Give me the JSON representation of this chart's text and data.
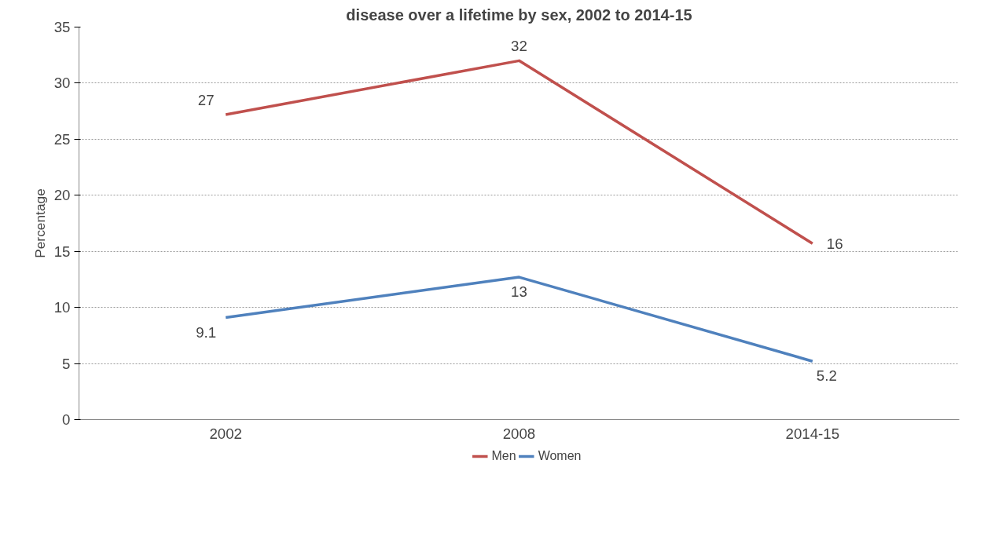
{
  "chart_data": {
    "type": "line",
    "title": "disease over a lifetime by sex, 2002 to 2014-15",
    "ylabel": "Percentage",
    "categories": [
      "2002",
      "2008",
      "2014-15"
    ],
    "series": [
      {
        "name": "Men",
        "color": "#c0504d",
        "values": [
          27.2,
          32.0,
          15.7
        ],
        "value_labels": [
          "27",
          "32",
          "16"
        ]
      },
      {
        "name": "Women",
        "color": "#4f81bd",
        "values": [
          9.1,
          12.7,
          5.2
        ],
        "value_labels": [
          "9.1",
          "13",
          "5.2"
        ]
      }
    ],
    "ylim": [
      0,
      35
    ],
    "yticks": [
      0,
      5,
      10,
      15,
      20,
      25,
      30,
      35
    ],
    "grid": "y",
    "legend": "bottom",
    "marker": "none",
    "line_style": "solid"
  }
}
